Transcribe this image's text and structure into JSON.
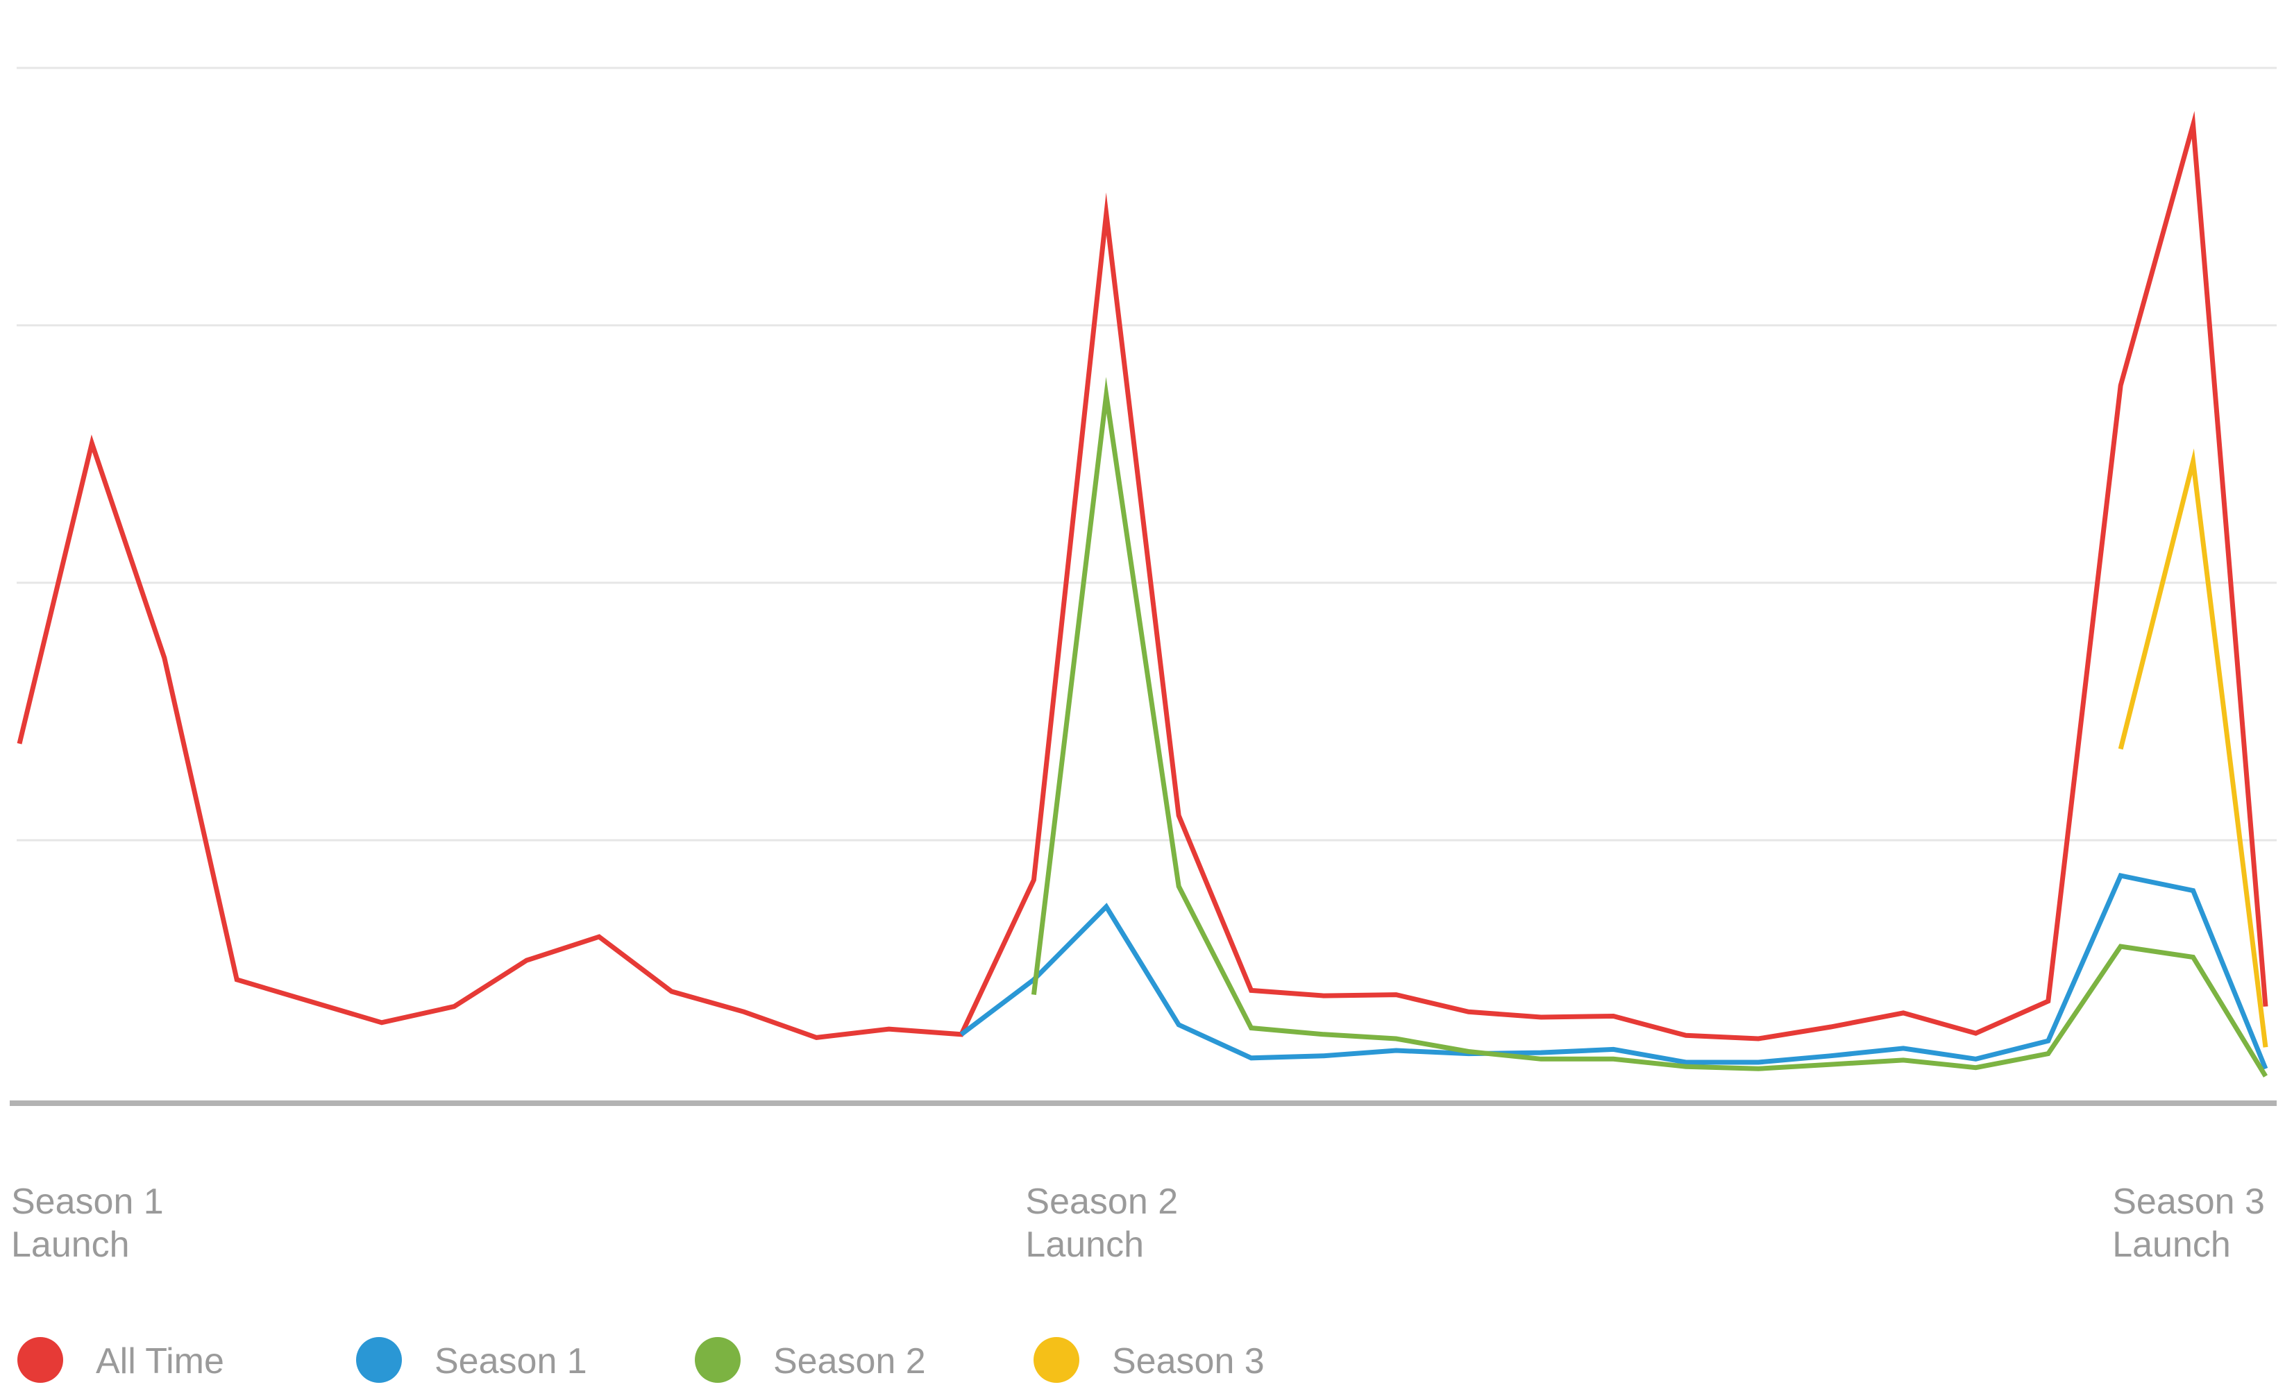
{
  "chart_data": {
    "type": "line",
    "title": "",
    "xlabel": "",
    "ylabel": "",
    "x": [
      0,
      1,
      2,
      3,
      4,
      5,
      6,
      7,
      8,
      9,
      10,
      11,
      12,
      13,
      14,
      15,
      16,
      17,
      18,
      19,
      20,
      21,
      22,
      23,
      24,
      25,
      26,
      27,
      28,
      29,
      30,
      31
    ],
    "xlim": [
      0,
      31
    ],
    "ylim": [
      0,
      100
    ],
    "grid": true,
    "legend_position": "bottom-left",
    "x_tick_labels": [
      {
        "x": 0,
        "lines": [
          "Season 1",
          "Launch"
        ]
      },
      {
        "x": 14,
        "lines": [
          "Season 2",
          "Launch"
        ]
      },
      {
        "x": 29,
        "lines": [
          "Season 3",
          "Launch"
        ]
      }
    ],
    "y_gridlines": [
      24,
      48,
      72,
      96
    ],
    "series": [
      {
        "name": "All Time",
        "color": "#e63a36",
        "points": [
          [
            0,
            33
          ],
          [
            1,
            61
          ],
          [
            2,
            41
          ],
          [
            3,
            11
          ],
          [
            4,
            9
          ],
          [
            5,
            7
          ],
          [
            6,
            8.5
          ],
          [
            7,
            12.8
          ],
          [
            8,
            15
          ],
          [
            9,
            9.9
          ],
          [
            10,
            8
          ],
          [
            11,
            5.6
          ],
          [
            12,
            6.4
          ],
          [
            13,
            5.9
          ],
          [
            14,
            20.3
          ],
          [
            15,
            82.4
          ],
          [
            16,
            26.3
          ],
          [
            17,
            10
          ],
          [
            18,
            9.5
          ],
          [
            19,
            9.6
          ],
          [
            20,
            8
          ],
          [
            21,
            7.5
          ],
          [
            22,
            7.6
          ],
          [
            23,
            5.8
          ],
          [
            24,
            5.5
          ],
          [
            25,
            6.6
          ],
          [
            26,
            7.9
          ],
          [
            27,
            6
          ],
          [
            28,
            9
          ],
          [
            29,
            66.4
          ],
          [
            30,
            90.7
          ],
          [
            31,
            8.5
          ]
        ]
      },
      {
        "name": "Season 1",
        "color": "#2a97d5",
        "points": [
          [
            13,
            5.9
          ],
          [
            14,
            11
          ],
          [
            15,
            17.8
          ],
          [
            16,
            6.8
          ],
          [
            17,
            3.7
          ],
          [
            18,
            3.9
          ],
          [
            19,
            4.4
          ],
          [
            20,
            4.1
          ],
          [
            21,
            4.2
          ],
          [
            22,
            4.5
          ],
          [
            23,
            3.3
          ],
          [
            24,
            3.3
          ],
          [
            25,
            3.9
          ],
          [
            26,
            4.6
          ],
          [
            27,
            3.6
          ],
          [
            28,
            5.3
          ],
          [
            29,
            20.7
          ],
          [
            30,
            19.3
          ],
          [
            31,
            2.7
          ]
        ]
      },
      {
        "name": "Season 2",
        "color": "#7cb342",
        "points": [
          [
            14,
            9.6
          ],
          [
            15,
            65.5
          ],
          [
            16,
            19.7
          ],
          [
            17,
            6.5
          ],
          [
            18,
            5.9
          ],
          [
            19,
            5.5
          ],
          [
            20,
            4.3
          ],
          [
            21,
            3.6
          ],
          [
            22,
            3.6
          ],
          [
            23,
            2.9
          ],
          [
            24,
            2.7
          ],
          [
            25,
            3.1
          ],
          [
            26,
            3.5
          ],
          [
            27,
            2.8
          ],
          [
            28,
            4.1
          ],
          [
            29,
            14.1
          ],
          [
            30,
            13.1
          ],
          [
            31,
            2
          ]
        ]
      },
      {
        "name": "Season 3",
        "color": "#f5c018",
        "points": [
          [
            29,
            32.5
          ],
          [
            30,
            59.3
          ],
          [
            31,
            4.7
          ]
        ]
      }
    ]
  }
}
